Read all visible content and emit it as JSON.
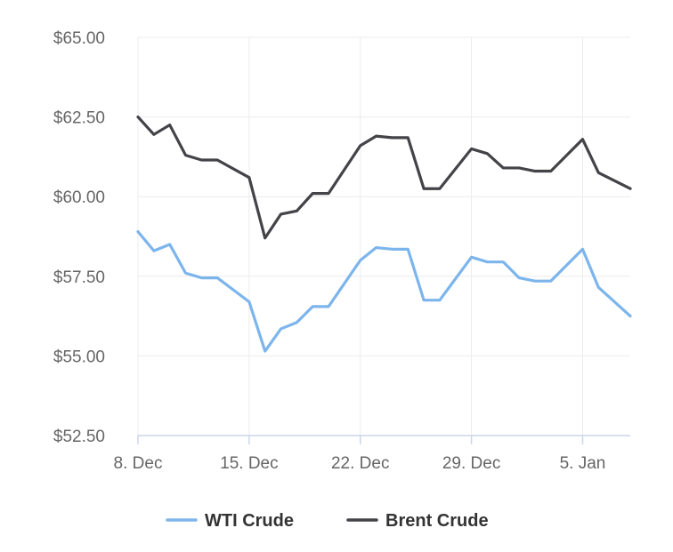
{
  "chart_data": {
    "type": "line",
    "title": "",
    "xlabel": "",
    "ylabel": "",
    "x_dates": [
      "8 Dec",
      "9 Dec",
      "10 Dec",
      "11 Dec",
      "12 Dec",
      "13 Dec",
      "14 Dec",
      "15 Dec",
      "16 Dec",
      "17 Dec",
      "18 Dec",
      "19 Dec",
      "20 Dec",
      "21 Dec",
      "22 Dec",
      "23 Dec",
      "24 Dec",
      "25 Dec",
      "26 Dec",
      "27 Dec",
      "28 Dec",
      "29 Dec",
      "30 Dec",
      "31 Dec",
      "1 Jan",
      "2 Jan",
      "3 Jan",
      "4 Jan",
      "5 Jan",
      "6 Jan",
      "7 Jan",
      "8 Jan"
    ],
    "x_tick_labels": [
      "8. Dec",
      "15. Dec",
      "22. Dec",
      "29. Dec",
      "5. Jan"
    ],
    "x_tick_positions": [
      0,
      7,
      14,
      21,
      28
    ],
    "y_tick_labels": [
      "$65.00",
      "$62.50",
      "$60.00",
      "$57.50",
      "$55.00",
      "$52.50"
    ],
    "y_tick_values": [
      65,
      62.5,
      60,
      57.5,
      55,
      52.5
    ],
    "ylim": [
      52.5,
      65
    ],
    "grid": true,
    "legend_position": "bottom",
    "series": [
      {
        "name": "WTI Crude",
        "color": "#7cb5ec",
        "points": [
          [
            0,
            58.9
          ],
          [
            1,
            58.3
          ],
          [
            2,
            58.5
          ],
          [
            3,
            57.6
          ],
          [
            4,
            57.45
          ],
          [
            5,
            57.45
          ],
          [
            7,
            56.7
          ],
          [
            8,
            55.15
          ],
          [
            9,
            55.85
          ],
          [
            10,
            56.05
          ],
          [
            11,
            56.55
          ],
          [
            12,
            56.55
          ],
          [
            14,
            58.0
          ],
          [
            15,
            58.4
          ],
          [
            16,
            58.35
          ],
          [
            17,
            58.35
          ],
          [
            18,
            56.75
          ],
          [
            19,
            56.75
          ],
          [
            21,
            58.1
          ],
          [
            22,
            57.95
          ],
          [
            23,
            57.95
          ],
          [
            24,
            57.45
          ],
          [
            25,
            57.35
          ],
          [
            26,
            57.35
          ],
          [
            28,
            58.35
          ],
          [
            29,
            57.15
          ],
          [
            31,
            56.25
          ]
        ]
      },
      {
        "name": "Brent Crude",
        "color": "#434348",
        "points": [
          [
            0,
            62.5
          ],
          [
            1,
            61.95
          ],
          [
            2,
            62.25
          ],
          [
            3,
            61.3
          ],
          [
            4,
            61.15
          ],
          [
            5,
            61.15
          ],
          [
            7,
            60.6
          ],
          [
            8,
            58.7
          ],
          [
            9,
            59.45
          ],
          [
            10,
            59.55
          ],
          [
            11,
            60.1
          ],
          [
            12,
            60.1
          ],
          [
            14,
            61.6
          ],
          [
            15,
            61.9
          ],
          [
            16,
            61.85
          ],
          [
            17,
            61.85
          ],
          [
            18,
            60.25
          ],
          [
            19,
            60.25
          ],
          [
            21,
            61.5
          ],
          [
            22,
            61.35
          ],
          [
            23,
            60.9
          ],
          [
            24,
            60.9
          ],
          [
            25,
            60.8
          ],
          [
            26,
            60.8
          ],
          [
            28,
            61.8
          ],
          [
            29,
            60.75
          ],
          [
            31,
            60.25
          ]
        ]
      }
    ]
  }
}
